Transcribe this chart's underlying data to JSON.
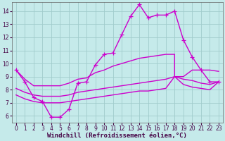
{
  "background_color": "#c5eaea",
  "plot_bg_color": "#c5eaea",
  "line_color": "#cc00cc",
  "grid_color": "#a0cccc",
  "xlabel": "Windchill (Refroidissement éolien,°C)",
  "xlabel_fontsize": 6.5,
  "ylim": [
    5.5,
    14.7
  ],
  "xlim": [
    -0.5,
    23.5
  ],
  "yticks": [
    6,
    7,
    8,
    9,
    10,
    11,
    12,
    13,
    14
  ],
  "xticks": [
    0,
    1,
    2,
    3,
    4,
    5,
    6,
    7,
    8,
    9,
    10,
    11,
    12,
    13,
    14,
    15,
    16,
    17,
    18,
    19,
    20,
    21,
    22,
    23
  ],
  "series": [
    {
      "x": [
        0,
        1,
        2,
        3,
        4,
        5,
        6,
        7,
        8,
        9,
        10,
        11,
        12,
        13,
        14,
        15,
        16,
        17,
        18,
        19,
        20,
        21,
        22,
        23
      ],
      "y": [
        9.5,
        8.6,
        7.4,
        7.1,
        5.9,
        5.9,
        6.5,
        8.5,
        8.6,
        9.9,
        10.7,
        10.8,
        12.2,
        13.6,
        14.5,
        13.5,
        13.7,
        13.7,
        14.0,
        11.8,
        10.5,
        9.5,
        8.6,
        8.6
      ],
      "marker": "+",
      "linewidth": 1.0,
      "markersize": 4
    },
    {
      "x": [
        0,
        1,
        2,
        3,
        4,
        5,
        6,
        7,
        8,
        9,
        10,
        11,
        12,
        13,
        14,
        15,
        16,
        17,
        18,
        18,
        19,
        20,
        21,
        22,
        23
      ],
      "y": [
        9.5,
        8.8,
        8.3,
        8.3,
        8.3,
        8.3,
        8.5,
        8.8,
        8.9,
        9.3,
        9.5,
        9.8,
        10.0,
        10.2,
        10.4,
        10.5,
        10.6,
        10.7,
        10.7,
        9.0,
        9.0,
        9.5,
        9.5,
        9.5,
        9.4
      ],
      "marker": null,
      "linewidth": 1.0,
      "markersize": 0
    },
    {
      "x": [
        0,
        1,
        2,
        3,
        4,
        5,
        6,
        7,
        8,
        9,
        10,
        11,
        12,
        13,
        14,
        15,
        16,
        17,
        18,
        19,
        20,
        21,
        22,
        23
      ],
      "y": [
        8.1,
        7.8,
        7.6,
        7.5,
        7.5,
        7.5,
        7.6,
        7.8,
        7.9,
        8.0,
        8.1,
        8.2,
        8.3,
        8.4,
        8.5,
        8.6,
        8.7,
        8.8,
        9.0,
        8.8,
        8.7,
        8.5,
        8.4,
        8.6
      ],
      "marker": null,
      "linewidth": 1.0,
      "markersize": 0
    },
    {
      "x": [
        0,
        1,
        2,
        3,
        4,
        5,
        6,
        7,
        8,
        9,
        10,
        11,
        12,
        13,
        14,
        15,
        16,
        17,
        18,
        19,
        20,
        21,
        22,
        23
      ],
      "y": [
        7.6,
        7.3,
        7.1,
        7.0,
        7.0,
        7.0,
        7.1,
        7.2,
        7.3,
        7.4,
        7.5,
        7.6,
        7.7,
        7.8,
        7.9,
        7.9,
        8.0,
        8.1,
        9.0,
        8.4,
        8.2,
        8.1,
        8.0,
        8.6
      ],
      "marker": null,
      "linewidth": 1.0,
      "markersize": 0
    }
  ]
}
